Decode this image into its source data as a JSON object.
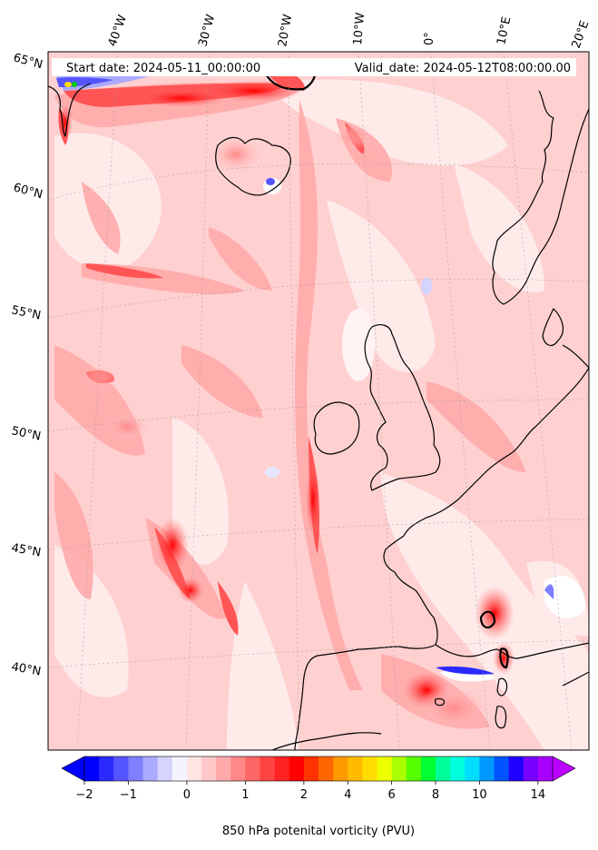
{
  "header": {
    "start_date": "Start date: 2024-05-11_00:00:00",
    "valid_date": "Valid_date: 2024-05-12T08:00:00.00"
  },
  "map": {
    "projection": "rotated pole / conic",
    "region": "North Atlantic and Western Europe",
    "field": "850 hPa potential vorticity",
    "lon_labels": [
      "40°W",
      "30°W",
      "20°W",
      "10°W",
      "0°",
      "10°E",
      "20°E"
    ],
    "lat_labels": [
      "65°N",
      "60°N",
      "55°N",
      "50°N",
      "45°N",
      "40°N"
    ],
    "gridlines": true,
    "coastlines": true
  },
  "colorbar": {
    "label": "850 hPa potenital vorticity (PVU)",
    "tick_labels": [
      "−2",
      "−1",
      "0",
      "1",
      "2",
      "4",
      "6",
      "8",
      "10",
      "14"
    ],
    "extend": "both",
    "colors": [
      "#0000ff",
      "#2a2aff",
      "#5555ff",
      "#7f7fff",
      "#aaaaff",
      "#d4d4ff",
      "#f4f4ff",
      "#ffe4e4",
      "#ffc8c8",
      "#ffaaaa",
      "#ff8888",
      "#ff6666",
      "#ff4444",
      "#ff2222",
      "#ff0000",
      "#ff3300",
      "#ff6600",
      "#ff9900",
      "#ffbb00",
      "#ffdd00",
      "#eeff00",
      "#aaff00",
      "#55ff00",
      "#00ff33",
      "#00ff99",
      "#00ffdd",
      "#00ddff",
      "#0099ff",
      "#0055ff",
      "#2200ff",
      "#7700ff",
      "#aa00ff"
    ]
  },
  "legend_colors": {
    "under": "#0000ff",
    "over": "#bb00ff",
    "positive_accent": "#ff0000",
    "background_field": "#ffd6d6"
  }
}
